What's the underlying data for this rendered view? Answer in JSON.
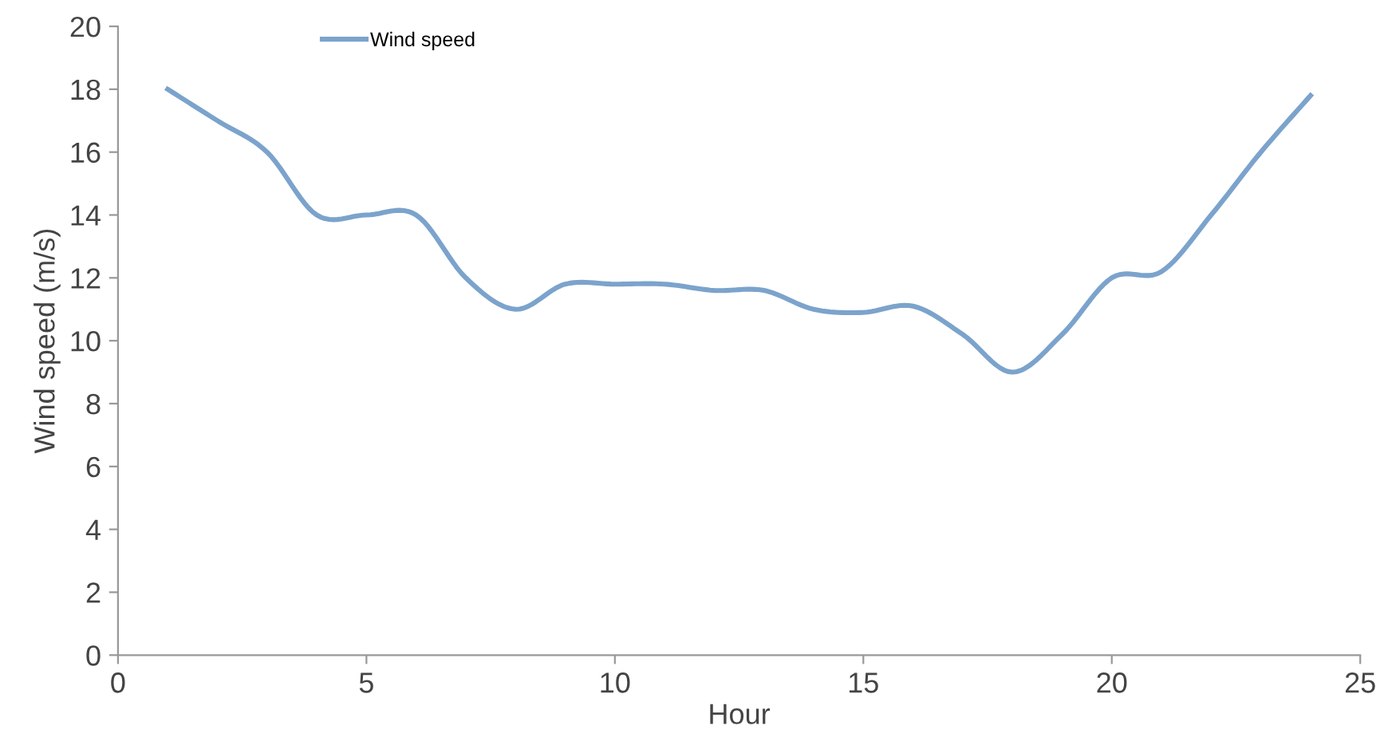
{
  "chart_data": {
    "type": "line",
    "xlabel": "Hour",
    "ylabel": "Wind speed (m/s)",
    "x": [
      1,
      2,
      3,
      4,
      5,
      6,
      7,
      8,
      9,
      10,
      11,
      12,
      13,
      14,
      15,
      16,
      17,
      18,
      19,
      20,
      21,
      22,
      23,
      24
    ],
    "series": [
      {
        "name": "Wind speed",
        "color": "#7ba3cc",
        "values": [
          18.0,
          17.0,
          16.0,
          14.0,
          14.0,
          14.0,
          12.0,
          11.0,
          11.8,
          11.8,
          11.8,
          11.6,
          11.6,
          11.0,
          10.9,
          11.1,
          10.2,
          9.0,
          10.2,
          12.0,
          12.2,
          14.0,
          16.0,
          17.8
        ]
      }
    ],
    "xlim": [
      0,
      25
    ],
    "xticks": [
      0,
      5,
      10,
      15,
      20,
      25
    ],
    "ylim": [
      0,
      20
    ],
    "yticks": [
      0,
      2,
      4,
      6,
      8,
      10,
      12,
      14,
      16,
      18,
      20
    ],
    "grid": false,
    "legend": "top left",
    "marker": "none",
    "line_style": "solid"
  }
}
